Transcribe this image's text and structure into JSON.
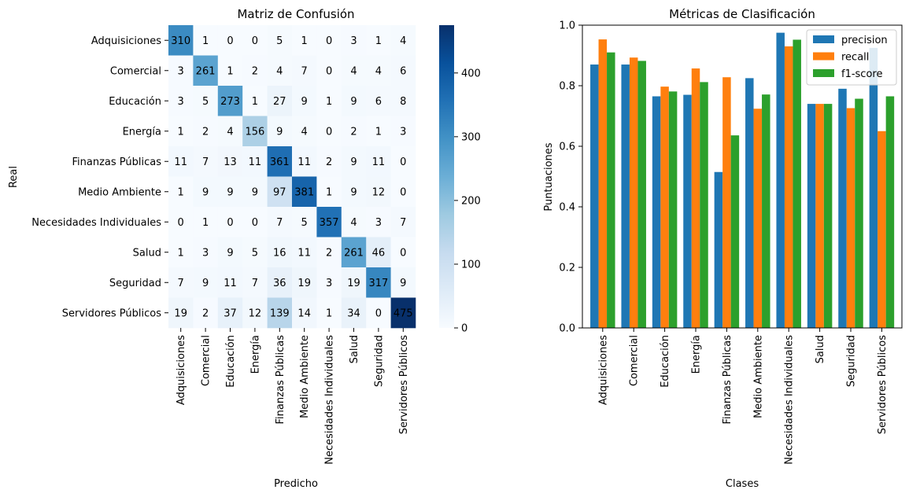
{
  "chart_data": [
    {
      "type": "heatmap",
      "title": "Matriz de Confusión",
      "xlabel": "Predicho",
      "ylabel": "Real",
      "classes": [
        "Adquisiciones",
        "Comercial",
        "Educación",
        "Energía",
        "Finanzas Públicas",
        "Medio Ambiente",
        "Necesidades Individuales",
        "Salud",
        "Seguridad",
        "Servidores Públicos"
      ],
      "matrix": [
        [
          310,
          1,
          0,
          0,
          5,
          1,
          0,
          3,
          1,
          4
        ],
        [
          3,
          261,
          1,
          2,
          4,
          7,
          0,
          4,
          4,
          6
        ],
        [
          3,
          5,
          273,
          1,
          27,
          9,
          1,
          9,
          6,
          8
        ],
        [
          1,
          2,
          4,
          156,
          9,
          4,
          0,
          2,
          1,
          3
        ],
        [
          11,
          7,
          13,
          11,
          361,
          11,
          2,
          9,
          11,
          0
        ],
        [
          1,
          9,
          9,
          9,
          97,
          381,
          1,
          9,
          12,
          0
        ],
        [
          0,
          1,
          0,
          0,
          7,
          5,
          357,
          4,
          3,
          7
        ],
        [
          1,
          3,
          9,
          5,
          16,
          11,
          2,
          261,
          46,
          0
        ],
        [
          7,
          9,
          11,
          7,
          36,
          19,
          3,
          19,
          317,
          9
        ],
        [
          19,
          2,
          37,
          12,
          139,
          14,
          1,
          34,
          0,
          475
        ]
      ],
      "colorbar": {
        "min": 0,
        "max": 475,
        "ticks": [
          0,
          100,
          200,
          300,
          400
        ],
        "colormap": "Blues"
      }
    },
    {
      "type": "bar",
      "title": "Métricas de Clasificación",
      "xlabel": "Clases",
      "ylabel": "Puntuaciones",
      "ylim": [
        0,
        1.0
      ],
      "yticks": [
        "0.0",
        "0.2",
        "0.4",
        "0.6",
        "0.8",
        "1.0"
      ],
      "legend_position": "top-right",
      "categories": [
        "Adquisiciones",
        "Comercial",
        "Educación",
        "Energía",
        "Finanzas Públicas",
        "Medio Ambiente",
        "Necesidades Individuales",
        "Salud",
        "Seguridad",
        "Servidores Públicos"
      ],
      "series": [
        {
          "name": "precision",
          "color": "#1f77b4",
          "values": [
            0.87,
            0.87,
            0.765,
            0.77,
            0.515,
            0.825,
            0.975,
            0.74,
            0.79,
            0.925
          ]
        },
        {
          "name": "recall",
          "color": "#ff7f0e",
          "values": [
            0.953,
            0.893,
            0.797,
            0.857,
            0.828,
            0.724,
            0.93,
            0.74,
            0.726,
            0.65
          ]
        },
        {
          "name": "f1-score",
          "color": "#2ca02c",
          "values": [
            0.91,
            0.882,
            0.781,
            0.812,
            0.636,
            0.771,
            0.952,
            0.74,
            0.757,
            0.765
          ]
        }
      ]
    }
  ]
}
